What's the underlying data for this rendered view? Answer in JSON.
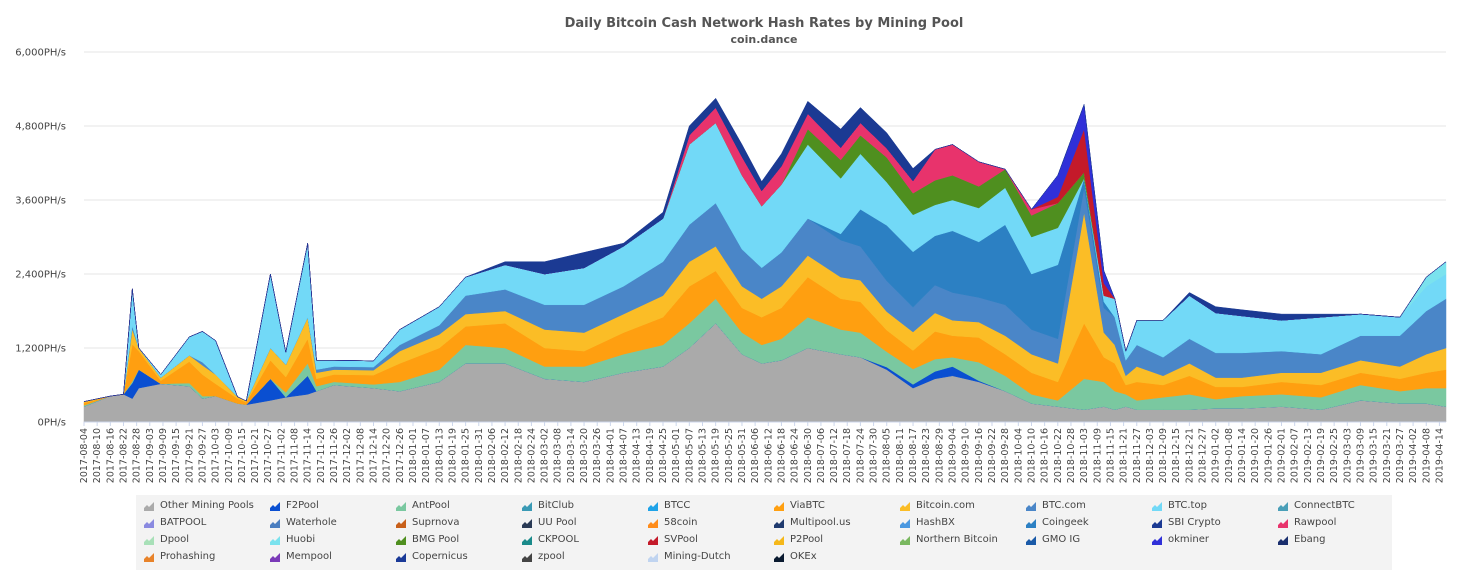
{
  "chart_data": {
    "type": "area",
    "stacked": true,
    "title": "Daily Bitcoin Cash Network Hash Rates by Mining Pool",
    "subtitle": "coin.dance",
    "y_axis": {
      "ticks": [
        "0PH/s",
        "1,200PH/s",
        "2,400PH/s",
        "3,600PH/s",
        "4,800PH/s",
        "6,000PH/s"
      ],
      "tick_values": [
        0,
        1200,
        2400,
        3600,
        4800,
        6000
      ],
      "range": [
        0,
        6000
      ],
      "unit": "PH/s"
    },
    "grid": "horizontal",
    "legend_position": "bottom",
    "x_tick_labels": [
      "2017-08-04",
      "2017-08-10",
      "2017-08-16",
      "2017-08-22",
      "2017-08-28",
      "2017-09-03",
      "2017-09-09",
      "2017-09-15",
      "2017-09-21",
      "2017-09-27",
      "2017-10-03",
      "2017-10-09",
      "2017-10-15",
      "2017-10-21",
      "2017-10-27",
      "2017-11-02",
      "2017-11-08",
      "2017-11-14",
      "2017-11-20",
      "2017-11-26",
      "2017-12-02",
      "2017-12-08",
      "2017-12-14",
      "2017-12-20",
      "2017-12-26",
      "2018-01-01",
      "2018-01-07",
      "2018-01-13",
      "2018-01-19",
      "2018-01-25",
      "2018-01-31",
      "2018-02-06",
      "2018-02-12",
      "2018-02-18",
      "2018-02-24",
      "2018-03-02",
      "2018-03-08",
      "2018-03-14",
      "2018-03-20",
      "2018-03-26",
      "2018-04-01",
      "2018-04-07",
      "2018-04-13",
      "2018-04-19",
      "2018-04-25",
      "2018-05-01",
      "2018-05-07",
      "2018-05-13",
      "2018-05-19",
      "2018-05-25",
      "2018-05-31",
      "2018-06-06",
      "2018-06-12",
      "2018-06-18",
      "2018-06-24",
      "2018-06-30",
      "2018-07-06",
      "2018-07-12",
      "2018-07-18",
      "2018-07-24",
      "2018-07-30",
      "2018-08-05",
      "2018-08-11",
      "2018-08-17",
      "2018-08-23",
      "2018-08-29",
      "2018-09-04",
      "2018-09-10",
      "2018-09-16",
      "2018-09-22",
      "2018-09-28",
      "2018-10-04",
      "2018-10-10",
      "2018-10-16",
      "2018-10-22",
      "2018-10-28",
      "2018-11-03",
      "2018-11-09",
      "2018-11-15",
      "2018-11-21",
      "2018-11-27",
      "2018-12-03",
      "2018-12-09",
      "2018-12-15",
      "2018-12-21",
      "2018-12-27",
      "2019-01-02",
      "2019-01-08",
      "2019-01-14",
      "2019-01-20",
      "2019-01-26",
      "2019-02-01",
      "2019-02-07",
      "2019-02-13",
      "2019-02-19",
      "2019-02-25",
      "2019-03-03",
      "2019-03-09",
      "2019-03-15",
      "2019-03-21",
      "2019-03-27",
      "2019-04-02",
      "2019-04-08",
      "2019-04-14"
    ],
    "x_sample_dates": [
      "2017-08-04",
      "2017-08-16",
      "2017-08-22",
      "2017-08-26",
      "2017-08-29",
      "2017-09-08",
      "2017-09-21",
      "2017-09-27",
      "2017-10-03",
      "2017-10-13",
      "2017-10-17",
      "2017-10-28",
      "2017-11-04",
      "2017-11-14",
      "2017-11-18",
      "2017-11-26",
      "2017-12-14",
      "2017-12-26",
      "2018-01-13",
      "2018-01-25",
      "2018-02-12",
      "2018-03-02",
      "2018-03-20",
      "2018-04-07",
      "2018-04-25",
      "2018-05-07",
      "2018-05-19",
      "2018-05-31",
      "2018-06-09",
      "2018-06-18",
      "2018-06-30",
      "2018-07-15",
      "2018-07-24",
      "2018-08-05",
      "2018-08-17",
      "2018-08-27",
      "2018-09-04",
      "2018-09-16",
      "2018-09-28",
      "2018-10-10",
      "2018-10-22",
      "2018-11-03",
      "2018-11-12",
      "2018-11-17",
      "2018-11-22",
      "2018-11-27",
      "2018-12-09",
      "2018-12-21",
      "2019-01-02",
      "2019-01-14",
      "2019-02-01",
      "2019-02-19",
      "2019-03-09",
      "2019-03-27",
      "2019-04-08",
      "2019-04-17"
    ],
    "series": [
      {
        "name": "Other Mining Pools",
        "color": "#aaaaaa",
        "values": [
          250,
          420,
          450,
          380,
          550,
          620,
          580,
          380,
          420,
          300,
          280,
          350,
          400,
          450,
          500,
          600,
          550,
          500,
          650,
          950,
          950,
          700,
          650,
          800,
          900,
          1200,
          1600,
          1100,
          950,
          1000,
          1200,
          1100,
          1050,
          850,
          550,
          700,
          750,
          650,
          500,
          300,
          250,
          200,
          250,
          200,
          250,
          200,
          200,
          200,
          220,
          220,
          250,
          200,
          350,
          300,
          300,
          250
        ]
      },
      {
        "name": "F2Pool",
        "color": "#0a4fd1",
        "values": [
          0,
          0,
          0,
          250,
          300,
          0,
          0,
          0,
          0,
          0,
          0,
          350,
          0,
          300,
          0,
          0,
          0,
          0,
          0,
          0,
          0,
          0,
          0,
          0,
          0,
          0,
          0,
          0,
          0,
          0,
          0,
          0,
          0,
          40,
          60,
          120,
          150,
          20,
          0,
          0,
          0,
          0,
          0,
          0,
          0,
          0,
          0,
          0,
          0,
          0,
          0,
          0,
          0,
          0,
          0,
          0
        ]
      },
      {
        "name": "AntPool",
        "color": "#7ac8a0",
        "values": [
          20,
          0,
          0,
          30,
          0,
          0,
          50,
          40,
          0,
          0,
          0,
          0,
          80,
          200,
          80,
          50,
          60,
          150,
          200,
          300,
          250,
          200,
          250,
          300,
          350,
          400,
          400,
          350,
          300,
          350,
          500,
          400,
          400,
          250,
          250,
          200,
          150,
          300,
          250,
          150,
          100,
          500,
          400,
          300,
          200,
          150,
          200,
          250,
          150,
          200,
          200,
          200,
          250,
          200,
          250,
          300
        ]
      },
      {
        "name": "ViaBTC",
        "color": "#ff9f10",
        "values": [
          40,
          0,
          0,
          600,
          300,
          50,
          350,
          350,
          200,
          80,
          40,
          300,
          250,
          400,
          120,
          120,
          150,
          300,
          350,
          300,
          400,
          300,
          250,
          350,
          450,
          600,
          450,
          400,
          450,
          500,
          650,
          500,
          500,
          350,
          300,
          450,
          350,
          400,
          350,
          350,
          300,
          900,
          400,
          450,
          150,
          300,
          200,
          300,
          200,
          150,
          200,
          200,
          200,
          200,
          250,
          300
        ]
      },
      {
        "name": "Bitcoin.com",
        "color": "#fbbd26",
        "values": [
          20,
          0,
          0,
          250,
          50,
          50,
          100,
          150,
          150,
          30,
          20,
          200,
          200,
          350,
          100,
          80,
          80,
          200,
          220,
          200,
          200,
          300,
          300,
          300,
          350,
          400,
          400,
          350,
          300,
          350,
          350,
          350,
          350,
          300,
          300,
          300,
          250,
          250,
          300,
          300,
          300,
          1800,
          400,
          300,
          150,
          250,
          150,
          200,
          150,
          150,
          150,
          200,
          200,
          200,
          300,
          350
        ]
      },
      {
        "name": "BTC.com",
        "color": "#4a86c8",
        "values": [
          0,
          0,
          0,
          50,
          0,
          0,
          0,
          50,
          0,
          0,
          0,
          0,
          0,
          0,
          50,
          50,
          50,
          100,
          150,
          300,
          350,
          400,
          450,
          450,
          550,
          600,
          700,
          600,
          500,
          550,
          600,
          600,
          550,
          500,
          400,
          450,
          450,
          400,
          500,
          400,
          400,
          400,
          400,
          450,
          250,
          350,
          300,
          400,
          400,
          400,
          350,
          300,
          400,
          500,
          700,
          800
        ]
      },
      {
        "name": "Coingeek",
        "color": "#2c80c3",
        "values": [
          0,
          0,
          0,
          0,
          0,
          0,
          0,
          0,
          0,
          0,
          0,
          0,
          0,
          0,
          0,
          0,
          0,
          0,
          0,
          0,
          0,
          0,
          0,
          0,
          0,
          0,
          0,
          0,
          0,
          0,
          0,
          100,
          600,
          900,
          900,
          800,
          1000,
          900,
          1300,
          900,
          1200,
          150,
          100,
          0,
          0,
          0,
          0,
          0,
          0,
          0,
          0,
          0,
          0,
          0,
          0,
          0
        ]
      },
      {
        "name": "BTC.top",
        "color": "#72d9f7",
        "values": [
          0,
          0,
          0,
          600,
          0,
          50,
          300,
          500,
          550,
          0,
          0,
          1200,
          200,
          1200,
          150,
          100,
          100,
          250,
          300,
          300,
          400,
          500,
          600,
          650,
          700,
          1300,
          1300,
          1200,
          1000,
          1100,
          1200,
          900,
          900,
          700,
          600,
          500,
          500,
          550,
          600,
          600,
          600,
          0,
          100,
          300,
          150,
          400,
          600,
          700,
          650,
          600,
          500,
          600,
          350,
          300,
          400,
          400
        ]
      },
      {
        "name": "Huobi",
        "color": "#7ae2ee",
        "values": [
          0,
          0,
          0,
          0,
          0,
          0,
          0,
          0,
          0,
          0,
          0,
          0,
          0,
          0,
          0,
          0,
          0,
          0,
          0,
          0,
          0,
          0,
          0,
          0,
          0,
          0,
          0,
          0,
          0,
          0,
          0,
          0,
          0,
          0,
          0,
          0,
          0,
          0,
          0,
          0,
          0,
          0,
          0,
          0,
          0,
          0,
          0,
          0,
          0,
          0,
          0,
          0,
          0,
          0,
          150,
          200
        ]
      },
      {
        "name": "BMG Pool",
        "color": "#4f8f1f",
        "values": [
          0,
          0,
          0,
          0,
          0,
          0,
          0,
          0,
          0,
          0,
          0,
          0,
          0,
          0,
          0,
          0,
          0,
          0,
          0,
          0,
          0,
          0,
          0,
          0,
          0,
          0,
          0,
          0,
          0,
          0,
          250,
          300,
          300,
          400,
          350,
          400,
          400,
          350,
          300,
          350,
          400,
          100,
          0,
          0,
          0,
          0,
          0,
          0,
          0,
          0,
          0,
          0,
          0,
          0,
          0,
          0
        ]
      },
      {
        "name": "Rawpool",
        "color": "#e8336c",
        "values": [
          0,
          0,
          0,
          0,
          0,
          0,
          0,
          0,
          0,
          0,
          0,
          0,
          0,
          0,
          0,
          0,
          0,
          0,
          0,
          0,
          0,
          0,
          0,
          0,
          0,
          150,
          250,
          300,
          250,
          300,
          250,
          200,
          200,
          150,
          200,
          500,
          500,
          400,
          0,
          100,
          0,
          0,
          0,
          0,
          0,
          0,
          0,
          0,
          0,
          0,
          0,
          0,
          0,
          0,
          0,
          0
        ]
      },
      {
        "name": "SVPool",
        "color": "#c41a2a",
        "values": [
          0,
          0,
          0,
          0,
          0,
          0,
          0,
          0,
          0,
          0,
          0,
          0,
          0,
          0,
          0,
          0,
          0,
          0,
          0,
          0,
          0,
          0,
          0,
          0,
          0,
          0,
          0,
          0,
          0,
          0,
          0,
          0,
          0,
          0,
          0,
          0,
          0,
          0,
          0,
          0,
          100,
          700,
          200,
          0,
          0,
          0,
          0,
          0,
          0,
          0,
          0,
          0,
          0,
          0,
          0,
          0
        ]
      },
      {
        "name": "okminer",
        "color": "#3030d8",
        "values": [
          0,
          0,
          0,
          0,
          0,
          0,
          0,
          0,
          0,
          0,
          0,
          0,
          0,
          0,
          0,
          0,
          0,
          0,
          0,
          0,
          0,
          0,
          0,
          0,
          0,
          0,
          0,
          0,
          0,
          0,
          0,
          0,
          0,
          0,
          0,
          0,
          0,
          0,
          0,
          0,
          350,
          400,
          200,
          0,
          0,
          0,
          0,
          0,
          0,
          0,
          0,
          0,
          0,
          0,
          0,
          0
        ]
      },
      {
        "name": "SBI Crypto",
        "color": "#1b3a93",
        "values": [
          0,
          0,
          0,
          0,
          0,
          0,
          0,
          0,
          0,
          0,
          0,
          0,
          0,
          0,
          0,
          0,
          0,
          0,
          0,
          0,
          50,
          200,
          250,
          50,
          100,
          150,
          150,
          200,
          150,
          200,
          200,
          300,
          250,
          250,
          200,
          0,
          0,
          0,
          0,
          0,
          0,
          0,
          0,
          0,
          0,
          0,
          0,
          50,
          100,
          100,
          100,
          50,
          0,
          0,
          0,
          0
        ]
      }
    ]
  },
  "legend": [
    {
      "label": "Other Mining Pools",
      "color": "#aaaaaa",
      "icon": "area-icon"
    },
    {
      "label": "F2Pool",
      "color": "#0a4fd1",
      "icon": "area-icon"
    },
    {
      "label": "AntPool",
      "color": "#7ac8a0",
      "icon": "area-icon"
    },
    {
      "label": "BitClub",
      "color": "#3a9ab5",
      "icon": "area-icon"
    },
    {
      "label": "BTCC",
      "color": "#1fa3e8",
      "icon": "area-icon"
    },
    {
      "label": "ViaBTC",
      "color": "#ff9f10",
      "icon": "area-icon"
    },
    {
      "label": "Bitcoin.com",
      "color": "#fbbd26",
      "icon": "area-icon"
    },
    {
      "label": "BTC.com",
      "color": "#4a86c8",
      "icon": "area-icon"
    },
    {
      "label": "BTC.top",
      "color": "#72d9f7",
      "icon": "area-icon"
    },
    {
      "label": "ConnectBTC",
      "color": "#4a9fb8",
      "icon": "area-icon"
    },
    {
      "label": "BATPOOL",
      "color": "#8a8ae0",
      "icon": "area-icon"
    },
    {
      "label": "Waterhole",
      "color": "#4a7ec0",
      "icon": "area-icon"
    },
    {
      "label": "Suprnova",
      "color": "#c8601a",
      "icon": "area-icon"
    },
    {
      "label": "UU Pool",
      "color": "#2a3a55",
      "icon": "area-icon"
    },
    {
      "label": "58coin",
      "color": "#ff8c1a",
      "icon": "area-icon"
    },
    {
      "label": "Multipool.us",
      "color": "#1f3a6e",
      "icon": "area-icon"
    },
    {
      "label": "HashBX",
      "color": "#4a98e0",
      "icon": "area-icon"
    },
    {
      "label": "Coingeek",
      "color": "#2c80c3",
      "icon": "area-icon"
    },
    {
      "label": "SBI Crypto",
      "color": "#1b3a93",
      "icon": "area-icon"
    },
    {
      "label": "Rawpool",
      "color": "#e8336c",
      "icon": "area-icon"
    },
    {
      "label": "Dpool",
      "color": "#a8e0b8",
      "icon": "area-icon"
    },
    {
      "label": "Huobi",
      "color": "#7ae2ee",
      "icon": "area-icon"
    },
    {
      "label": "BMG Pool",
      "color": "#4f8f1f",
      "icon": "area-icon"
    },
    {
      "label": "CKPOOL",
      "color": "#1a8a8a",
      "icon": "area-icon"
    },
    {
      "label": "SVPool",
      "color": "#c41a2a",
      "icon": "area-icon"
    },
    {
      "label": "P2Pool",
      "color": "#f5b81a",
      "icon": "area-icon"
    },
    {
      "label": "Northern Bitcoin",
      "color": "#7ab860",
      "icon": "area-icon"
    },
    {
      "label": "GMO IG",
      "color": "#1a5aa8",
      "icon": "area-icon"
    },
    {
      "label": "okminer",
      "color": "#3030d8",
      "icon": "area-icon"
    },
    {
      "label": "Ebang",
      "color": "#1a2f6e",
      "icon": "area-icon"
    },
    {
      "label": "Prohashing",
      "color": "#e8832a",
      "icon": "area-icon"
    },
    {
      "label": "Mempool",
      "color": "#7a3ab8",
      "icon": "area-icon"
    },
    {
      "label": "Copernicus",
      "color": "#1a3a98",
      "icon": "area-icon"
    },
    {
      "label": "zpool",
      "color": "#444444",
      "icon": "area-icon"
    },
    {
      "label": "Mining-Dutch",
      "color": "#c0d4f0",
      "icon": "area-icon"
    },
    {
      "label": "OKEx",
      "color": "#0a1a30",
      "icon": "area-icon"
    }
  ]
}
